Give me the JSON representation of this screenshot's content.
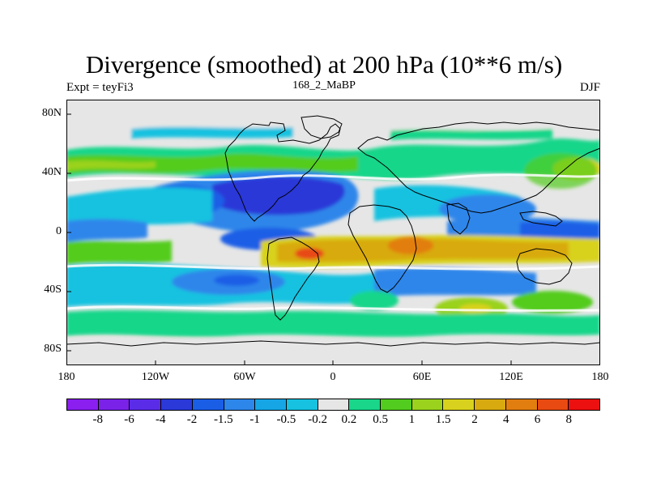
{
  "title": "Divergence (smoothed) at 200 hPa (10**6 m/s)",
  "subtitle_left": "Expt = teyFi3",
  "subtitle_center": "168_2_MaBP",
  "subtitle_right": "DJF",
  "lat_ticks": [
    "80N",
    "40N",
    "0",
    "40S",
    "80S"
  ],
  "lon_ticks": [
    "180",
    "120W",
    "60W",
    "0",
    "60E",
    "120E",
    "180"
  ],
  "colorbar": {
    "colors": [
      "#8a1ff0",
      "#7a22e8",
      "#5b2ce8",
      "#2a39d8",
      "#1a5ee6",
      "#2d86ea",
      "#16a6e6",
      "#16c2e0",
      "#e6e6e6",
      "#19d68a",
      "#52cc1e",
      "#9ad21e",
      "#d8d21e",
      "#d8aa10",
      "#e27e10",
      "#e84a12",
      "#ec1010"
    ],
    "labels": [
      "-8",
      "-6",
      "-4",
      "-2",
      "-1.5",
      "-1",
      "-0.5",
      "-0.2",
      "0.2",
      "0.5",
      "1",
      "1.5",
      "2",
      "4",
      "6",
      "8"
    ]
  }
}
